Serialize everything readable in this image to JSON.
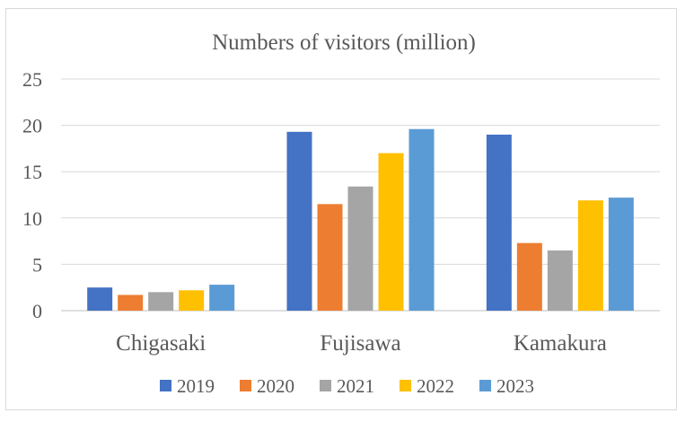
{
  "chart_data": {
    "type": "bar",
    "title": "Numbers of visitors (million)",
    "xlabel": "",
    "ylabel": "",
    "categories": [
      "Chigasaki",
      "Fujisawa",
      "Kamakura"
    ],
    "series": [
      {
        "name": "2019",
        "color": "#4472c4",
        "values": [
          2.5,
          19.3,
          19.0
        ]
      },
      {
        "name": "2020",
        "color": "#ed7d31",
        "values": [
          1.7,
          11.5,
          7.3
        ]
      },
      {
        "name": "2021",
        "color": "#a5a5a5",
        "values": [
          2.0,
          13.4,
          6.5
        ]
      },
      {
        "name": "2022",
        "color": "#ffc000",
        "values": [
          2.2,
          17.0,
          11.9
        ]
      },
      {
        "name": "2023",
        "color": "#5b9bd5",
        "values": [
          2.8,
          19.6,
          12.2
        ]
      }
    ],
    "yticks": [
      0,
      5,
      10,
      15,
      20,
      25
    ],
    "ylim": [
      0,
      25
    ],
    "grid": true,
    "legend": "bottom"
  }
}
